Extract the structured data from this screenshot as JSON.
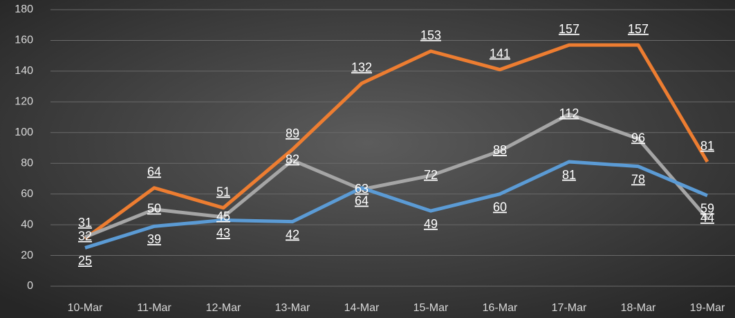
{
  "chart_data": {
    "type": "line",
    "categories": [
      "10-Mar",
      "11-Mar",
      "12-Mar",
      "13-Mar",
      "14-Mar",
      "15-Mar",
      "16-Mar",
      "17-Mar",
      "18-Mar",
      "19-Mar"
    ],
    "series": [
      {
        "color": "#ed7d31",
        "values": [
          31,
          64,
          51,
          89,
          132,
          153,
          141,
          157,
          157,
          81
        ]
      },
      {
        "color": "#a5a5a5",
        "values": [
          32,
          50,
          45,
          82,
          63,
          72,
          88,
          112,
          96,
          44
        ]
      },
      {
        "color": "#5b9bd5",
        "values": [
          25,
          39,
          43,
          42,
          64,
          49,
          60,
          81,
          78,
          59
        ]
      }
    ],
    "ylim": [
      0,
      180
    ],
    "yticks": [
      0,
      20,
      40,
      60,
      80,
      100,
      120,
      140,
      160,
      180
    ],
    "grid": true
  }
}
